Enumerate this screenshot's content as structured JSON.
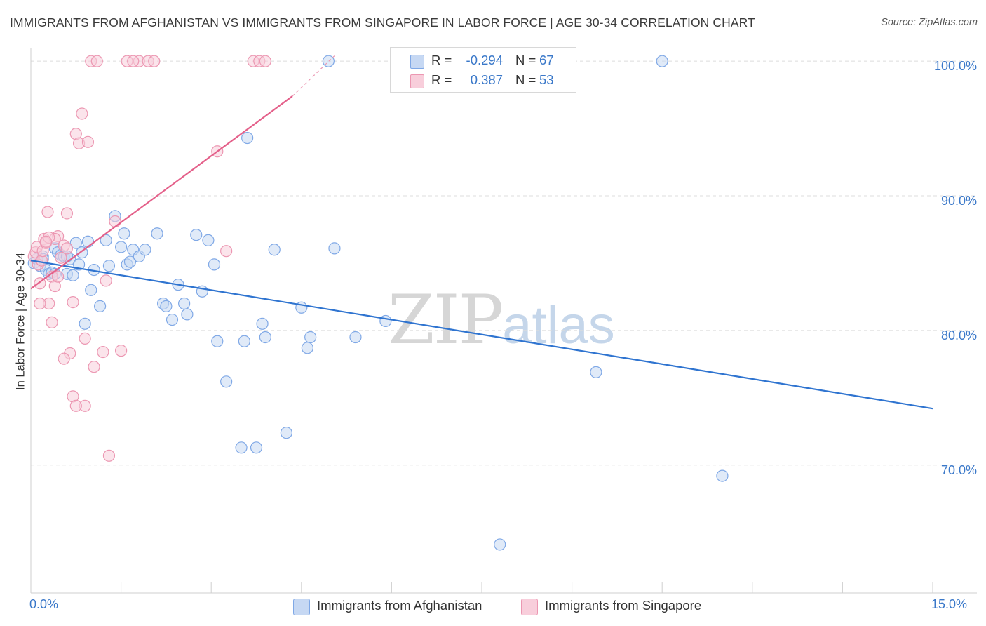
{
  "chart_data": {
    "type": "scatter",
    "title": "IMMIGRANTS FROM AFGHANISTAN VS IMMIGRANTS FROM SINGAPORE IN LABOR FORCE | AGE 30-34 CORRELATION CHART",
    "source": "Source: ZipAtlas.com",
    "xlabel": "",
    "ylabel": "In Labor Force | Age 30-34",
    "xlim": [
      0,
      15
    ],
    "ylim": [
      60.5,
      101
    ],
    "x_tick_labels": [
      "0.0%",
      "15.0%"
    ],
    "y_ticks": [
      {
        "value": 100,
        "label": "100.0%"
      },
      {
        "value": 90,
        "label": "90.0%"
      },
      {
        "value": 80,
        "label": "80.0%"
      },
      {
        "value": 70,
        "label": "70.0%"
      }
    ],
    "grid": true,
    "watermark": {
      "part1": "ZIP",
      "part2": "atlas"
    },
    "stats_labels": {
      "r": "R =",
      "n": "N ="
    },
    "series": [
      {
        "name": "Immigrants from Afghanistan",
        "color": "#7fa8e6",
        "fill": "#c6d8f3",
        "line_color": "#2f74d0",
        "r": "-0.294",
        "n": "67",
        "trend": {
          "x0": 0.0,
          "y0": 85.2,
          "x1": 15.0,
          "y1": 74.2
        },
        "x": [
          0.05,
          0.1,
          0.15,
          0.2,
          0.25,
          0.3,
          0.35,
          0.4,
          0.45,
          0.5,
          0.55,
          0.6,
          0.65,
          0.7,
          0.75,
          0.85,
          0.9,
          0.95,
          1.0,
          1.05,
          1.15,
          1.25,
          1.3,
          1.4,
          1.5,
          1.55,
          1.6,
          1.65,
          1.7,
          1.8,
          1.9,
          2.1,
          2.2,
          2.25,
          2.35,
          2.45,
          2.55,
          2.6,
          2.75,
          2.85,
          2.95,
          3.05,
          3.1,
          3.25,
          3.5,
          3.55,
          3.6,
          3.75,
          3.85,
          3.9,
          4.05,
          4.25,
          4.5,
          4.6,
          4.65,
          4.95,
          5.05,
          5.4,
          5.9,
          7.8,
          9.4,
          10.5,
          11.5,
          0.2,
          0.4,
          0.6,
          0.8
        ],
        "y": [
          85.0,
          85.3,
          84.8,
          85.5,
          84.5,
          84.2,
          84.3,
          86.1,
          85.8,
          85.6,
          85.5,
          84.2,
          85.3,
          84.1,
          86.5,
          85.8,
          80.5,
          86.6,
          83.0,
          84.5,
          81.8,
          86.7,
          84.8,
          88.5,
          86.2,
          87.2,
          84.9,
          85.1,
          86.0,
          85.5,
          86.0,
          87.2,
          82.0,
          81.8,
          80.8,
          83.4,
          82.0,
          81.2,
          87.1,
          82.9,
          86.7,
          84.9,
          79.2,
          76.2,
          71.3,
          79.2,
          94.3,
          71.3,
          80.5,
          79.5,
          86.0,
          72.4,
          81.7,
          78.7,
          79.5,
          100.0,
          86.1,
          79.5,
          80.7,
          64.1,
          76.9,
          100.0,
          69.2,
          85.3,
          84.2,
          85.5,
          84.9
        ]
      },
      {
        "name": "Immigrants from Singapore",
        "color": "#ec97b2",
        "fill": "#f8cedb",
        "line_color": "#e4608a",
        "r": "0.387",
        "n": "53",
        "trend": {
          "x0": 0.0,
          "y0": 83.1,
          "x1": 4.35,
          "y1": 97.4
        },
        "trend_ext": {
          "x0": 4.35,
          "y0": 97.4,
          "x1": 5.05,
          "y1": 100.4
        },
        "x": [
          0.05,
          0.08,
          0.1,
          0.12,
          0.15,
          0.18,
          0.2,
          0.22,
          0.25,
          0.28,
          0.3,
          0.35,
          0.4,
          0.45,
          0.5,
          0.55,
          0.6,
          0.65,
          0.7,
          0.75,
          0.8,
          0.9,
          1.0,
          1.05,
          1.1,
          1.2,
          1.3,
          1.4,
          1.5,
          1.6,
          1.8,
          1.95,
          2.05,
          3.1,
          3.25,
          3.7,
          3.8,
          3.9,
          1.7,
          0.85,
          0.95,
          0.6,
          0.4,
          0.55,
          1.25,
          0.3,
          0.7,
          0.75,
          0.9,
          0.15,
          0.35,
          0.25,
          0.45
        ],
        "y": [
          85.5,
          85.8,
          86.2,
          84.9,
          83.5,
          85.2,
          85.9,
          86.8,
          86.5,
          88.8,
          82.0,
          84.0,
          83.3,
          87.0,
          85.4,
          86.3,
          86.1,
          78.3,
          82.1,
          94.6,
          93.9,
          74.4,
          100.0,
          77.3,
          100.0,
          78.4,
          70.7,
          88.1,
          78.5,
          100.0,
          100.0,
          100.0,
          100.0,
          93.3,
          85.9,
          100.0,
          100.0,
          100.0,
          100.0,
          96.1,
          94.0,
          88.7,
          86.8,
          77.9,
          83.7,
          86.9,
          75.1,
          74.4,
          79.4,
          82.0,
          80.6,
          86.6,
          84.0
        ]
      }
    ]
  }
}
